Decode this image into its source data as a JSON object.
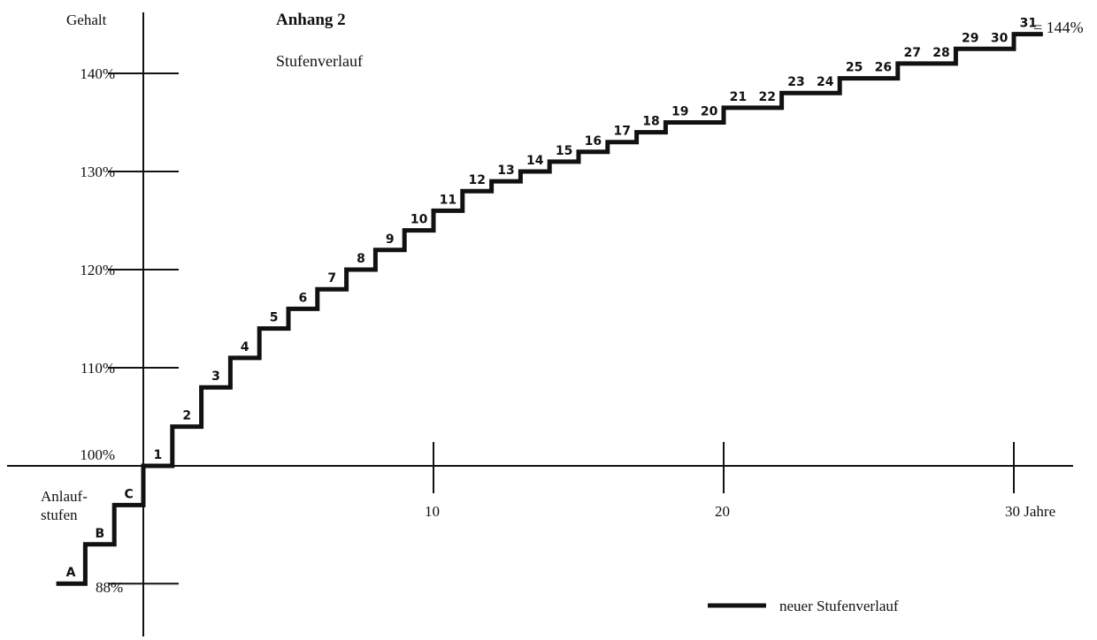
{
  "chart_data": {
    "type": "line",
    "title": "Anhang 2",
    "subtitle": "Stufenverlauf",
    "ylabel": "Gehalt",
    "xlabel": "Jahre",
    "y_ticks": [
      {
        "value": 140,
        "label": "140%"
      },
      {
        "value": 130,
        "label": "130%"
      },
      {
        "value": 120,
        "label": "120%"
      },
      {
        "value": 110,
        "label": "110%"
      },
      {
        "value": 100,
        "label": "100%"
      },
      {
        "value": 88,
        "label": "88%"
      }
    ],
    "x_ticks": [
      {
        "value": 10,
        "label": "10"
      },
      {
        "value": 20,
        "label": "20"
      },
      {
        "value": 30,
        "label": "30 Jahre"
      }
    ],
    "xlim": [
      -4.5,
      32.5
    ],
    "ylim": [
      82,
      145
    ],
    "start_label": "Anlauf-stufen",
    "start_label_lines": [
      "Anlauf-",
      "stufen"
    ],
    "end_label": "= 144%",
    "legend": {
      "label": "neuer Stufenverlauf",
      "position": "bottom-right"
    },
    "series": [
      {
        "name": "neuer Stufenverlauf",
        "steps": [
          {
            "label": "A",
            "x_start": -3,
            "x_end": -2,
            "y": 88
          },
          {
            "label": "B",
            "x_start": -2,
            "x_end": -1,
            "y": 92
          },
          {
            "label": "C",
            "x_start": -1,
            "x_end": 0,
            "y": 96
          },
          {
            "label": "1",
            "x_start": 0,
            "x_end": 1,
            "y": 100
          },
          {
            "label": "2",
            "x_start": 1,
            "x_end": 2,
            "y": 104
          },
          {
            "label": "3",
            "x_start": 2,
            "x_end": 3,
            "y": 108
          },
          {
            "label": "4",
            "x_start": 3,
            "x_end": 4,
            "y": 111
          },
          {
            "label": "5",
            "x_start": 4,
            "x_end": 5,
            "y": 114
          },
          {
            "label": "6",
            "x_start": 5,
            "x_end": 6,
            "y": 116
          },
          {
            "label": "7",
            "x_start": 6,
            "x_end": 7,
            "y": 118
          },
          {
            "label": "8",
            "x_start": 7,
            "x_end": 8,
            "y": 120
          },
          {
            "label": "9",
            "x_start": 8,
            "x_end": 9,
            "y": 122
          },
          {
            "label": "10",
            "x_start": 9,
            "x_end": 10,
            "y": 124
          },
          {
            "label": "11",
            "x_start": 10,
            "x_end": 11,
            "y": 126
          },
          {
            "label": "12",
            "x_start": 11,
            "x_end": 12,
            "y": 128
          },
          {
            "label": "13",
            "x_start": 12,
            "x_end": 13,
            "y": 129
          },
          {
            "label": "14",
            "x_start": 13,
            "x_end": 14,
            "y": 130
          },
          {
            "label": "15",
            "x_start": 14,
            "x_end": 15,
            "y": 131
          },
          {
            "label": "16",
            "x_start": 15,
            "x_end": 16,
            "y": 132
          },
          {
            "label": "17",
            "x_start": 16,
            "x_end": 17,
            "y": 133
          },
          {
            "label": "18",
            "x_start": 17,
            "x_end": 18,
            "y": 134
          },
          {
            "label": "19",
            "x_start": 18,
            "x_end": 19,
            "y": 135
          },
          {
            "label": "20",
            "x_start": 19,
            "x_end": 20,
            "y": 135
          },
          {
            "label": "21",
            "x_start": 20,
            "x_end": 21,
            "y": 136.5
          },
          {
            "label": "22",
            "x_start": 21,
            "x_end": 22,
            "y": 136.5
          },
          {
            "label": "23",
            "x_start": 22,
            "x_end": 23,
            "y": 138
          },
          {
            "label": "24",
            "x_start": 23,
            "x_end": 24,
            "y": 138
          },
          {
            "label": "25",
            "x_start": 24,
            "x_end": 25,
            "y": 139.5
          },
          {
            "label": "26",
            "x_start": 25,
            "x_end": 26,
            "y": 139.5
          },
          {
            "label": "27",
            "x_start": 26,
            "x_end": 27,
            "y": 141
          },
          {
            "label": "28",
            "x_start": 27,
            "x_end": 28,
            "y": 141
          },
          {
            "label": "29",
            "x_start": 28,
            "x_end": 29,
            "y": 142.5
          },
          {
            "label": "30",
            "x_start": 29,
            "x_end": 30,
            "y": 142.5
          },
          {
            "label": "31",
            "x_start": 30,
            "x_end": 31,
            "y": 144
          }
        ]
      }
    ]
  }
}
